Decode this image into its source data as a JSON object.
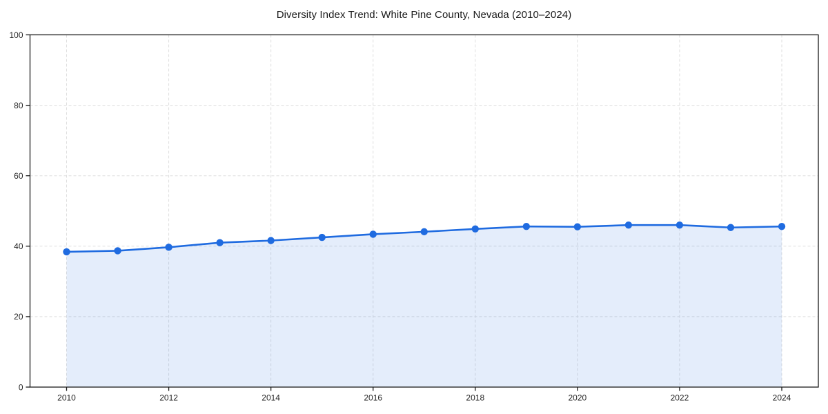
{
  "chart_data": {
    "type": "area",
    "title": "Diversity Index Trend: White Pine County, Nevada (2010–2024)",
    "x": [
      2010,
      2011,
      2012,
      2013,
      2014,
      2015,
      2016,
      2017,
      2018,
      2019,
      2020,
      2021,
      2022,
      2023,
      2024
    ],
    "values": [
      38.4,
      38.7,
      39.7,
      41.0,
      41.6,
      42.5,
      43.4,
      44.1,
      44.9,
      45.6,
      45.5,
      46.0,
      46.0,
      45.3,
      45.6
    ],
    "xlabel": "",
    "ylabel": "",
    "ylim": [
      0,
      100
    ],
    "yticks": [
      0,
      20,
      40,
      60,
      80,
      100
    ],
    "xticks": [
      2010,
      2012,
      2014,
      2016,
      2018,
      2020,
      2022,
      2024
    ],
    "grid": true,
    "legend": "none",
    "colors": {
      "line": "#1f6be0",
      "marker": "#1f6be0",
      "fill": "rgba(31,107,224,0.12)",
      "grid": "#dedede",
      "spine": "#1a1a1a",
      "tick_label": "#262626",
      "title": "#1a1a1a",
      "background": "#ffffff"
    }
  }
}
